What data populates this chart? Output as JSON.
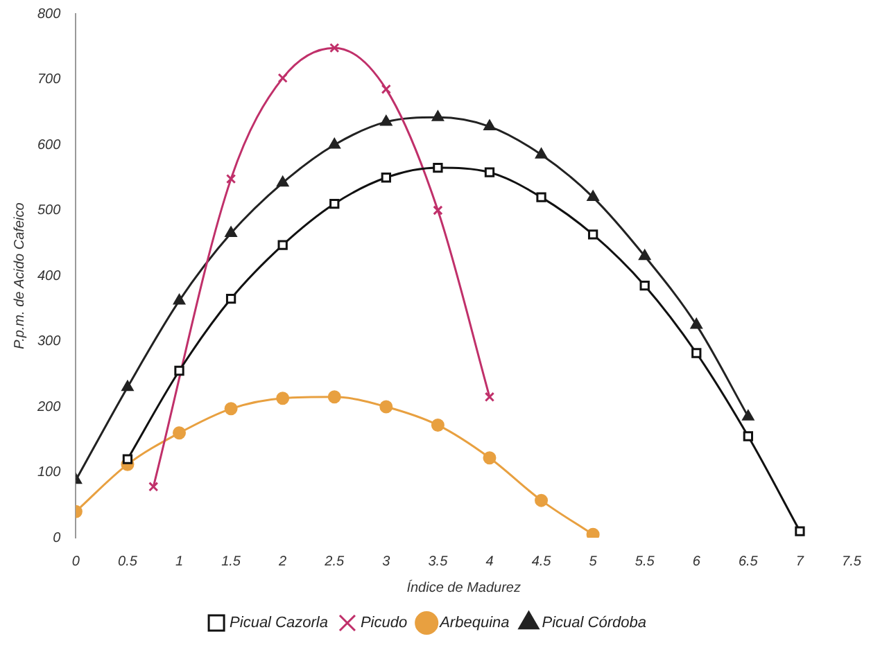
{
  "chart_data": {
    "type": "line",
    "xlabel": "Índice de Madurez",
    "ylabel": "P.p.m. de Acido Cafeico",
    "xlim": [
      0,
      7.5
    ],
    "xticks": [
      0,
      0.5,
      1,
      1.5,
      2,
      2.5,
      3,
      3.5,
      4,
      4.5,
      5,
      5.5,
      6,
      6.5,
      7,
      7.5
    ],
    "ylim": [
      0,
      800
    ],
    "yticks": [
      0,
      100,
      200,
      300,
      400,
      500,
      600,
      700,
      800
    ],
    "grid": false,
    "legend": "bottom",
    "series": [
      {
        "name": "Picual Cazorla",
        "color": "#111111",
        "marker": "square",
        "x": [
          0.5,
          1,
          1.5,
          2,
          2.5,
          3,
          3.5,
          4,
          4.5,
          5,
          5.5,
          6,
          6.5,
          7
        ],
        "values": [
          120,
          255,
          365,
          447,
          510,
          550,
          565,
          558,
          520,
          463,
          385,
          282,
          155,
          10
        ]
      },
      {
        "name": "Picudo",
        "color": "#c0306a",
        "marker": "cross",
        "x": [
          0.75,
          1.5,
          2,
          2.5,
          3,
          3.5,
          4
        ],
        "values": [
          78,
          548,
          702,
          748,
          685,
          500,
          215
        ]
      },
      {
        "name": "Arbequina",
        "color": "#e8a040",
        "marker": "circle",
        "x": [
          0,
          0.5,
          1,
          1.5,
          2,
          2.5,
          3,
          3.5,
          4,
          4.5,
          5
        ],
        "values": [
          40,
          112,
          160,
          197,
          213,
          215,
          200,
          172,
          122,
          57,
          5
        ]
      },
      {
        "name": "Picual Córdoba",
        "color": "#222222",
        "marker": "triangle",
        "x": [
          0,
          0.5,
          1,
          1.5,
          2,
          2.5,
          3,
          3.5,
          4,
          4.5,
          5,
          5.5,
          6,
          6.5
        ],
        "values": [
          88,
          230,
          362,
          465,
          542,
          600,
          635,
          642,
          628,
          585,
          520,
          430,
          325,
          185
        ]
      }
    ]
  }
}
